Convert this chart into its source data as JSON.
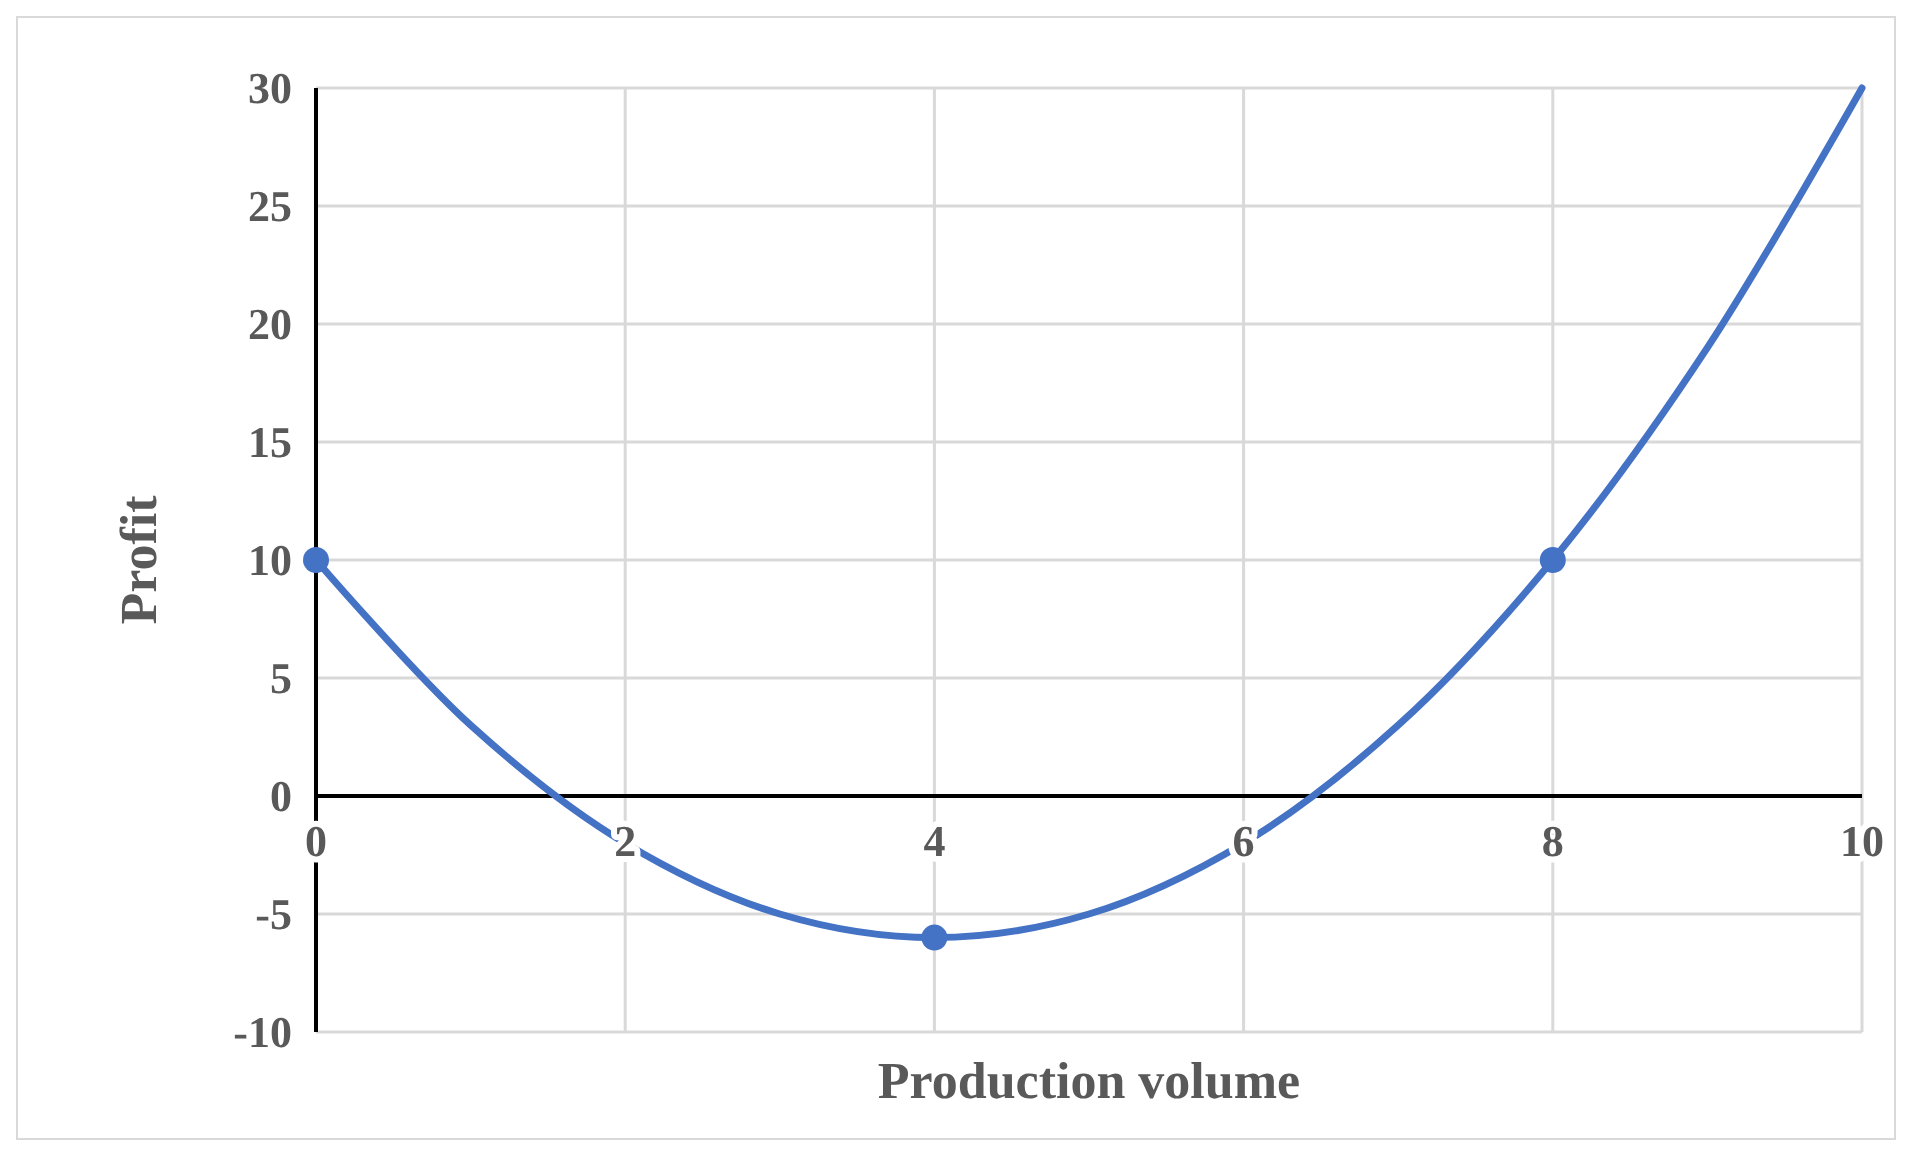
{
  "chart_data": {
    "type": "line",
    "xlabel": "Production volume",
    "ylabel": "Profit",
    "xlim": [
      0,
      10
    ],
    "ylim": [
      -10,
      30
    ],
    "xticks": [
      0,
      2,
      4,
      6,
      8,
      10
    ],
    "yticks": [
      -10,
      -5,
      0,
      5,
      10,
      15,
      20,
      25,
      30
    ],
    "grid": true,
    "series": [
      {
        "color": "#4472c4",
        "marker": "none",
        "line_style": "solid",
        "x": [
          0,
          1,
          2,
          3,
          4,
          5,
          6,
          7,
          8,
          9,
          10
        ],
        "values": [
          10,
          3,
          -2,
          -5,
          -6,
          -5,
          -2,
          3,
          10,
          19,
          30
        ]
      },
      {
        "type": "scatter",
        "color": "#4472c4",
        "marker": "circle",
        "x": [
          0,
          4,
          8
        ],
        "values": [
          10,
          -6,
          10
        ]
      }
    ]
  }
}
